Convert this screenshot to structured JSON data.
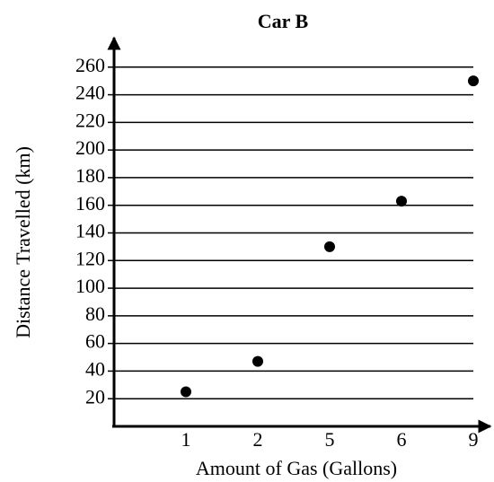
{
  "chart_data": {
    "type": "scatter",
    "title": "Car B",
    "x_label": "Amount of Gas (Gallons)",
    "y_label": "Distance Travelled (km)",
    "categories": [
      "1",
      "2",
      "5",
      "6",
      "9"
    ],
    "values": [
      25,
      47,
      130,
      163,
      250
    ],
    "color": "#000000",
    "ylim": [
      0,
      280
    ],
    "yticks": [
      20,
      40,
      60,
      80,
      100,
      120,
      140,
      160,
      180,
      200,
      220,
      240,
      260
    ],
    "grid": true
  }
}
